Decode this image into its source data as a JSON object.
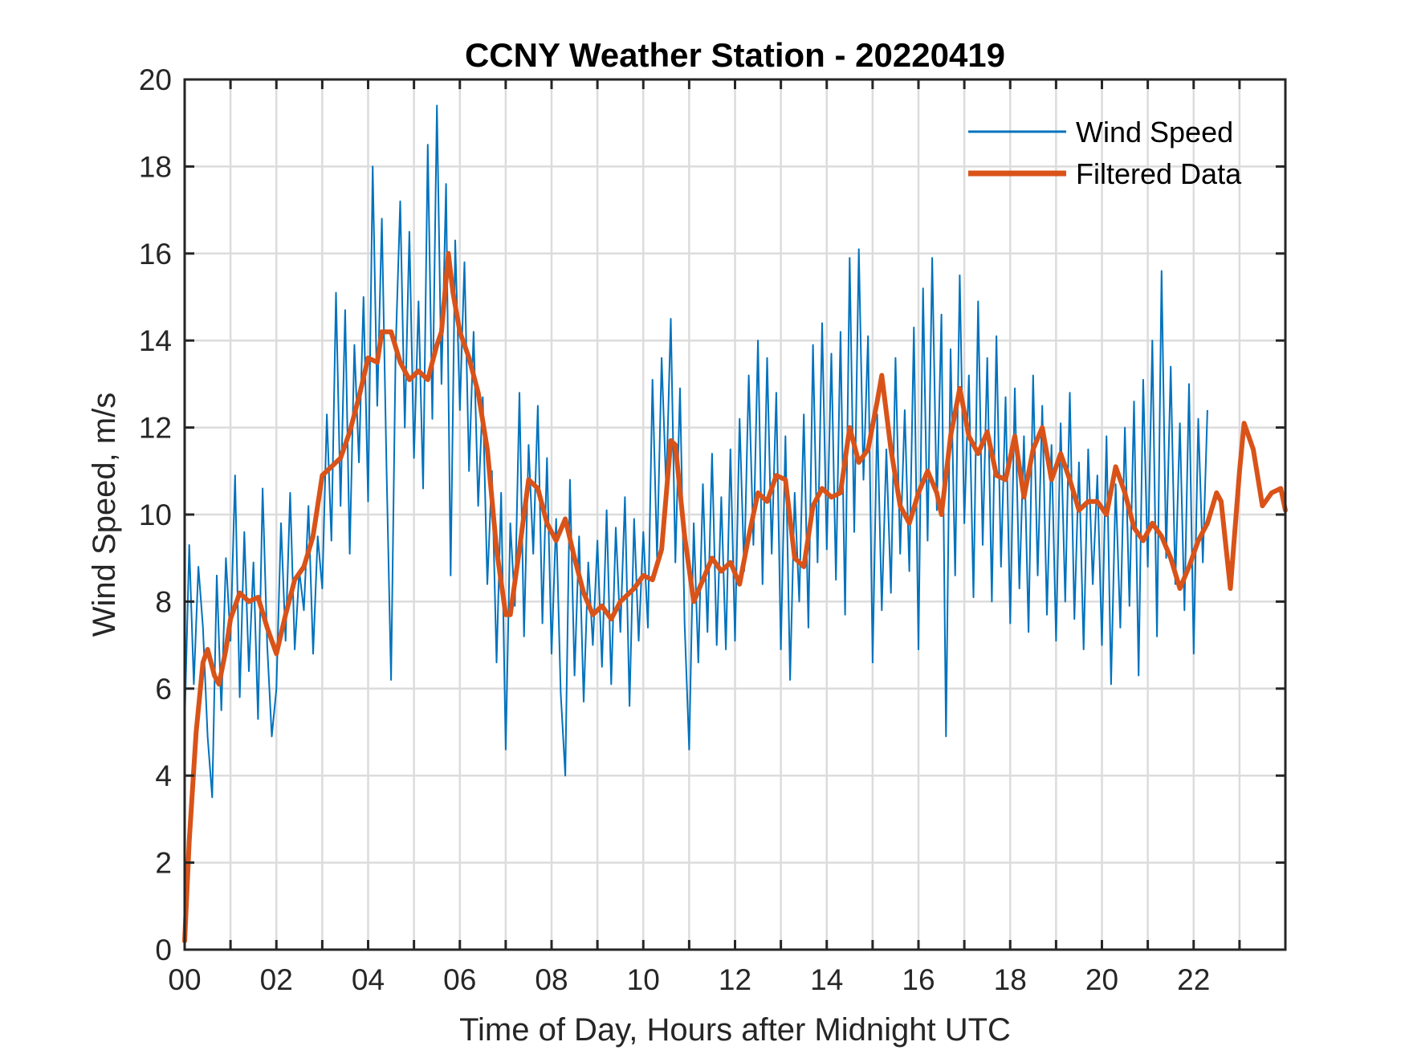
{
  "chart_data": {
    "type": "line",
    "title": "CCNY Weather Station - 20220419",
    "xlabel": "Time of Day, Hours after Midnight UTC",
    "ylabel": "Wind Speed, m/s",
    "xlim": [
      0,
      24
    ],
    "ylim": [
      0,
      20
    ],
    "grid": true,
    "x_ticks": [
      0,
      2,
      4,
      6,
      8,
      10,
      12,
      14,
      16,
      18,
      20,
      22
    ],
    "x_tick_labels": [
      "00",
      "02",
      "04",
      "06",
      "08",
      "10",
      "12",
      "14",
      "16",
      "18",
      "20",
      "22"
    ],
    "x_minor_grid_step_hours": 1,
    "y_ticks": [
      0,
      2,
      4,
      6,
      8,
      10,
      12,
      14,
      16,
      18,
      20
    ],
    "y_tick_labels": [
      "0",
      "2",
      "4",
      "6",
      "8",
      "10",
      "12",
      "14",
      "16",
      "18",
      "20"
    ],
    "legend": {
      "placement": "top-right",
      "entries": [
        "Wind Speed",
        "Filtered Data"
      ]
    },
    "series": [
      {
        "name": "Wind Speed",
        "color": "#0072BD",
        "x_start": 0,
        "x_step": 0.1,
        "values": [
          5.2,
          9.3,
          6.1,
          8.8,
          7.4,
          4.9,
          3.5,
          8.6,
          5.5,
          9.0,
          7.1,
          10.9,
          5.8,
          9.6,
          6.4,
          8.9,
          5.3,
          10.6,
          7.0,
          4.9,
          6.0,
          9.8,
          7.1,
          10.5,
          6.9,
          8.7,
          7.8,
          10.2,
          6.8,
          9.5,
          8.3,
          12.3,
          9.4,
          15.1,
          10.2,
          14.7,
          9.1,
          13.9,
          11.2,
          15.0,
          10.3,
          18.0,
          12.5,
          16.8,
          11.1,
          6.2,
          13.8,
          17.2,
          12.0,
          16.5,
          11.3,
          14.9,
          10.6,
          18.5,
          12.2,
          19.4,
          13.0,
          17.6,
          8.6,
          16.3,
          12.4,
          15.8,
          11.0,
          14.2,
          10.2,
          12.7,
          8.4,
          11.0,
          6.6,
          10.5,
          4.6,
          9.8,
          7.9,
          12.8,
          7.2,
          11.6,
          9.1,
          12.5,
          7.5,
          11.3,
          6.8,
          9.9,
          5.9,
          4.0,
          10.8,
          6.3,
          9.5,
          5.7,
          8.9,
          7.0,
          9.4,
          6.5,
          10.1,
          6.1,
          9.7,
          7.3,
          10.4,
          5.6,
          9.9,
          7.1,
          9.6,
          7.4,
          13.1,
          9.0,
          13.6,
          10.6,
          14.5,
          8.9,
          12.9,
          7.5,
          4.6,
          9.8,
          6.6,
          10.7,
          7.3,
          11.4,
          7.0,
          10.4,
          6.9,
          11.5,
          7.1,
          12.2,
          8.7,
          13.2,
          9.3,
          14.0,
          8.4,
          13.6,
          9.1,
          12.8,
          6.9,
          11.8,
          6.2,
          10.5,
          8.0,
          12.3,
          7.4,
          13.9,
          8.9,
          14.4,
          9.2,
          13.7,
          8.5,
          14.2,
          7.7,
          15.9,
          9.6,
          16.1,
          10.8,
          14.1,
          6.6,
          12.3,
          7.8,
          11.5,
          8.2,
          13.6,
          9.1,
          12.4,
          8.7,
          14.3,
          6.9,
          15.2,
          9.4,
          15.9,
          10.1,
          14.6,
          4.9,
          13.8,
          8.6,
          15.5,
          9.8,
          13.2,
          8.1,
          14.9,
          9.3,
          13.6,
          8.0,
          14.1,
          8.8,
          12.7,
          7.5,
          12.9,
          8.3,
          11.8,
          7.3,
          13.2,
          8.6,
          12.5,
          7.7,
          11.6,
          7.1,
          12.1,
          8.0,
          12.8,
          7.6,
          11.2,
          6.9,
          11.5,
          8.4,
          10.9,
          7.0,
          11.8,
          6.1,
          10.7,
          7.4,
          12.0,
          7.9,
          12.6,
          6.3,
          13.1,
          8.8,
          14.0,
          7.2,
          15.6,
          9.0,
          13.4,
          8.4,
          12.1,
          7.8,
          13.0,
          6.8,
          12.2,
          8.9,
          12.4
        ]
      },
      {
        "name": "Filtered Data",
        "color": "#D95319",
        "points": [
          [
            0.0,
            0.2
          ],
          [
            0.1,
            2.5
          ],
          [
            0.25,
            5.0
          ],
          [
            0.4,
            6.6
          ],
          [
            0.5,
            6.9
          ],
          [
            0.65,
            6.3
          ],
          [
            0.75,
            6.1
          ],
          [
            0.9,
            6.9
          ],
          [
            1.0,
            7.6
          ],
          [
            1.2,
            8.2
          ],
          [
            1.4,
            8.0
          ],
          [
            1.6,
            8.1
          ],
          [
            1.8,
            7.4
          ],
          [
            2.0,
            6.8
          ],
          [
            2.2,
            7.7
          ],
          [
            2.4,
            8.5
          ],
          [
            2.6,
            8.8
          ],
          [
            2.8,
            9.5
          ],
          [
            3.0,
            10.9
          ],
          [
            3.2,
            11.1
          ],
          [
            3.4,
            11.3
          ],
          [
            3.6,
            11.9
          ],
          [
            3.8,
            12.7
          ],
          [
            4.0,
            13.6
          ],
          [
            4.2,
            13.5
          ],
          [
            4.3,
            14.2
          ],
          [
            4.5,
            14.2
          ],
          [
            4.7,
            13.5
          ],
          [
            4.9,
            13.1
          ],
          [
            5.1,
            13.3
          ],
          [
            5.3,
            13.1
          ],
          [
            5.5,
            13.9
          ],
          [
            5.6,
            14.2
          ],
          [
            5.75,
            16.0
          ],
          [
            5.85,
            15.1
          ],
          [
            6.0,
            14.2
          ],
          [
            6.2,
            13.6
          ],
          [
            6.4,
            12.8
          ],
          [
            6.6,
            11.5
          ],
          [
            6.8,
            9.2
          ],
          [
            7.0,
            7.7
          ],
          [
            7.1,
            7.7
          ],
          [
            7.3,
            9.2
          ],
          [
            7.5,
            10.8
          ],
          [
            7.7,
            10.6
          ],
          [
            7.9,
            9.8
          ],
          [
            8.1,
            9.4
          ],
          [
            8.3,
            9.9
          ],
          [
            8.5,
            9.0
          ],
          [
            8.7,
            8.2
          ],
          [
            8.9,
            7.7
          ],
          [
            9.1,
            7.9
          ],
          [
            9.3,
            7.6
          ],
          [
            9.5,
            8.0
          ],
          [
            9.8,
            8.3
          ],
          [
            10.0,
            8.6
          ],
          [
            10.2,
            8.5
          ],
          [
            10.4,
            9.2
          ],
          [
            10.6,
            11.7
          ],
          [
            10.7,
            11.6
          ],
          [
            10.9,
            9.5
          ],
          [
            11.1,
            8.0
          ],
          [
            11.3,
            8.5
          ],
          [
            11.5,
            9.0
          ],
          [
            11.7,
            8.7
          ],
          [
            11.9,
            8.9
          ],
          [
            12.1,
            8.4
          ],
          [
            12.3,
            9.5
          ],
          [
            12.5,
            10.5
          ],
          [
            12.7,
            10.3
          ],
          [
            12.9,
            10.9
          ],
          [
            13.1,
            10.8
          ],
          [
            13.3,
            9.0
          ],
          [
            13.5,
            8.8
          ],
          [
            13.7,
            10.2
          ],
          [
            13.9,
            10.6
          ],
          [
            14.1,
            10.4
          ],
          [
            14.3,
            10.5
          ],
          [
            14.5,
            12.0
          ],
          [
            14.7,
            11.2
          ],
          [
            14.9,
            11.5
          ],
          [
            15.1,
            12.6
          ],
          [
            15.2,
            13.2
          ],
          [
            15.4,
            11.5
          ],
          [
            15.6,
            10.2
          ],
          [
            15.8,
            9.8
          ],
          [
            16.0,
            10.5
          ],
          [
            16.2,
            11.0
          ],
          [
            16.4,
            10.5
          ],
          [
            16.5,
            10.0
          ],
          [
            16.7,
            11.8
          ],
          [
            16.9,
            12.9
          ],
          [
            17.1,
            11.8
          ],
          [
            17.3,
            11.4
          ],
          [
            17.5,
            11.9
          ],
          [
            17.7,
            10.9
          ],
          [
            17.9,
            10.8
          ],
          [
            18.1,
            11.8
          ],
          [
            18.3,
            10.4
          ],
          [
            18.5,
            11.5
          ],
          [
            18.7,
            12.0
          ],
          [
            18.9,
            10.8
          ],
          [
            19.1,
            11.4
          ],
          [
            19.3,
            10.8
          ],
          [
            19.5,
            10.1
          ],
          [
            19.7,
            10.3
          ],
          [
            19.9,
            10.3
          ],
          [
            20.1,
            10.0
          ],
          [
            20.3,
            11.1
          ],
          [
            20.5,
            10.5
          ],
          [
            20.7,
            9.7
          ],
          [
            20.9,
            9.4
          ],
          [
            21.1,
            9.8
          ],
          [
            21.3,
            9.5
          ],
          [
            21.5,
            9.0
          ],
          [
            21.7,
            8.3
          ],
          [
            21.9,
            8.8
          ],
          [
            22.1,
            9.4
          ],
          [
            22.3,
            9.8
          ],
          [
            22.5,
            10.5
          ],
          [
            22.6,
            10.3
          ],
          [
            22.8,
            8.3
          ],
          [
            23.0,
            11.0
          ],
          [
            23.1,
            12.1
          ],
          [
            23.3,
            11.5
          ],
          [
            23.5,
            10.2
          ],
          [
            23.7,
            10.5
          ],
          [
            23.9,
            10.6
          ],
          [
            24.0,
            10.1
          ]
        ]
      }
    ]
  }
}
